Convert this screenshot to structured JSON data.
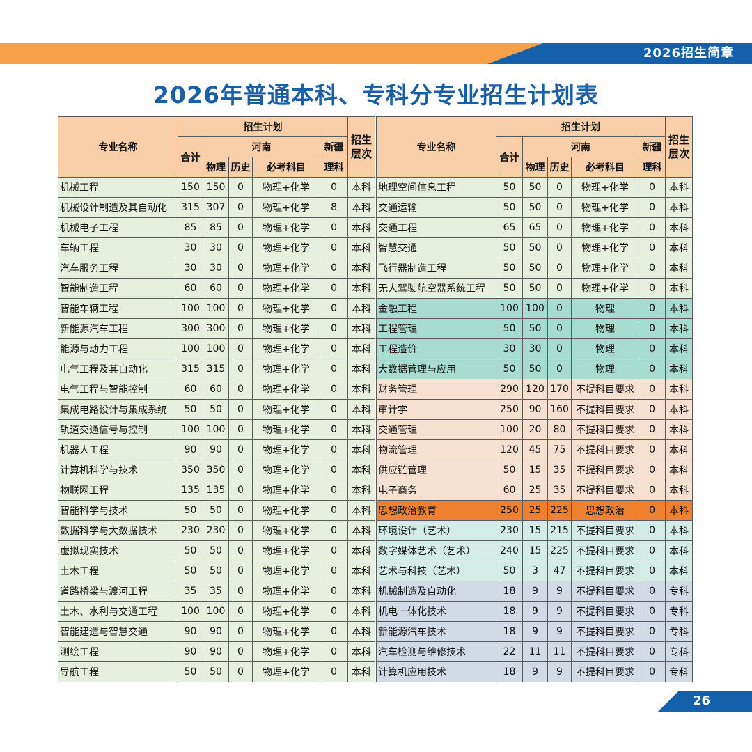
{
  "header": {
    "brochure_tag": "2026招生简章"
  },
  "title": "2026年普通本科、专科分专业招生计划表",
  "columns": {
    "major": "专业名称",
    "plan": "招生计划",
    "total": "合计",
    "henan": "河南",
    "physics": "物理",
    "history": "历史",
    "required": "必考科目",
    "xinjiang": "新疆",
    "science": "理科",
    "level": "招生层次"
  },
  "left_rows": [
    [
      "机械工程",
      "150",
      "150",
      "0",
      "物理+化学",
      "0",
      "本科"
    ],
    [
      "机械设计制造及其自动化",
      "315",
      "307",
      "0",
      "物理+化学",
      "8",
      "本科"
    ],
    [
      "机械电子工程",
      "85",
      "85",
      "0",
      "物理+化学",
      "0",
      "本科"
    ],
    [
      "车辆工程",
      "30",
      "30",
      "0",
      "物理+化学",
      "0",
      "本科"
    ],
    [
      "汽车服务工程",
      "30",
      "30",
      "0",
      "物理+化学",
      "0",
      "本科"
    ],
    [
      "智能制造工程",
      "60",
      "60",
      "0",
      "物理+化学",
      "0",
      "本科"
    ],
    [
      "智能车辆工程",
      "100",
      "100",
      "0",
      "物理+化学",
      "0",
      "本科"
    ],
    [
      "新能源汽车工程",
      "300",
      "300",
      "0",
      "物理+化学",
      "0",
      "本科"
    ],
    [
      "能源与动力工程",
      "100",
      "100",
      "0",
      "物理+化学",
      "0",
      "本科"
    ],
    [
      "电气工程及其自动化",
      "315",
      "315",
      "0",
      "物理+化学",
      "0",
      "本科"
    ],
    [
      "电气工程与智能控制",
      "60",
      "60",
      "0",
      "物理+化学",
      "0",
      "本科"
    ],
    [
      "集成电路设计与集成系统",
      "50",
      "50",
      "0",
      "物理+化学",
      "0",
      "本科"
    ],
    [
      "轨道交通信号与控制",
      "100",
      "100",
      "0",
      "物理+化学",
      "0",
      "本科"
    ],
    [
      "机器人工程",
      "90",
      "90",
      "0",
      "物理+化学",
      "0",
      "本科"
    ],
    [
      "计算机科学与技术",
      "350",
      "350",
      "0",
      "物理+化学",
      "0",
      "本科"
    ],
    [
      "物联网工程",
      "135",
      "135",
      "0",
      "物理+化学",
      "0",
      "本科"
    ],
    [
      "智能科学与技术",
      "50",
      "50",
      "0",
      "物理+化学",
      "0",
      "本科"
    ],
    [
      "数据科学与大数据技术",
      "230",
      "230",
      "0",
      "物理+化学",
      "0",
      "本科"
    ],
    [
      "虚拟现实技术",
      "50",
      "50",
      "0",
      "物理+化学",
      "0",
      "本科"
    ],
    [
      "土木工程",
      "50",
      "50",
      "0",
      "物理+化学",
      "0",
      "本科"
    ],
    [
      "道路桥梁与渡河工程",
      "35",
      "35",
      "0",
      "物理+化学",
      "0",
      "本科"
    ],
    [
      "土木、水利与交通工程",
      "100",
      "100",
      "0",
      "物理+化学",
      "0",
      "本科"
    ],
    [
      "智能建造与智慧交通",
      "90",
      "90",
      "0",
      "物理+化学",
      "0",
      "本科"
    ],
    [
      "测绘工程",
      "90",
      "90",
      "0",
      "物理+化学",
      "0",
      "本科"
    ],
    [
      "导航工程",
      "50",
      "50",
      "0",
      "物理+化学",
      "0",
      "本科"
    ]
  ],
  "right_rows": [
    [
      "地理空间信息工程",
      "50",
      "50",
      "0",
      "物理+化学",
      "0",
      "本科"
    ],
    [
      "交通运输",
      "50",
      "50",
      "0",
      "物理+化学",
      "0",
      "本科"
    ],
    [
      "交通工程",
      "65",
      "65",
      "0",
      "物理+化学",
      "0",
      "本科"
    ],
    [
      "智慧交通",
      "50",
      "50",
      "0",
      "物理+化学",
      "0",
      "本科"
    ],
    [
      "飞行器制造工程",
      "50",
      "50",
      "0",
      "物理+化学",
      "0",
      "本科"
    ],
    [
      "无人驾驶航空器系统工程",
      "50",
      "50",
      "0",
      "物理+化学",
      "0",
      "本科"
    ],
    [
      "金融工程",
      "100",
      "100",
      "0",
      "物理",
      "0",
      "本科"
    ],
    [
      "工程管理",
      "50",
      "50",
      "0",
      "物理",
      "0",
      "本科"
    ],
    [
      "工程造价",
      "30",
      "30",
      "0",
      "物理",
      "0",
      "本科"
    ],
    [
      "大数据管理与应用",
      "50",
      "50",
      "0",
      "物理",
      "0",
      "本科"
    ],
    [
      "财务管理",
      "290",
      "120",
      "170",
      "不提科目要求",
      "0",
      "本科"
    ],
    [
      "审计学",
      "250",
      "90",
      "160",
      "不提科目要求",
      "0",
      "本科"
    ],
    [
      "交通管理",
      "100",
      "20",
      "80",
      "不提科目要求",
      "0",
      "本科"
    ],
    [
      "物流管理",
      "120",
      "45",
      "75",
      "不提科目要求",
      "0",
      "本科"
    ],
    [
      "供应链管理",
      "50",
      "15",
      "35",
      "不提科目要求",
      "0",
      "本科"
    ],
    [
      "电子商务",
      "60",
      "25",
      "35",
      "不提科目要求",
      "0",
      "本科"
    ],
    [
      "思想政治教育",
      "250",
      "25",
      "225",
      "思想政治",
      "0",
      "本科"
    ],
    [
      "环境设计（艺术）",
      "230",
      "15",
      "215",
      "不提科目要求",
      "0",
      "本科"
    ],
    [
      "数字媒体艺术（艺术）",
      "240",
      "15",
      "225",
      "不提科目要求",
      "0",
      "本科"
    ],
    [
      "艺术与科技（艺术）",
      "50",
      "3",
      "47",
      "不提科目要求",
      "0",
      "本科"
    ],
    [
      "机械制造及自动化",
      "18",
      "9",
      "9",
      "不提科目要求",
      "0",
      "专科"
    ],
    [
      "机电一体化技术",
      "18",
      "9",
      "9",
      "不提科目要求",
      "0",
      "专科"
    ],
    [
      "新能源汽车技术",
      "18",
      "9",
      "9",
      "不提科目要求",
      "0",
      "专科"
    ],
    [
      "汽车检测与维修技术",
      "22",
      "11",
      "11",
      "不提科目要求",
      "0",
      "专科"
    ],
    [
      "计算机应用技术",
      "18",
      "9",
      "9",
      "不提科目要求",
      "0",
      "专科"
    ]
  ],
  "page_number": "26"
}
